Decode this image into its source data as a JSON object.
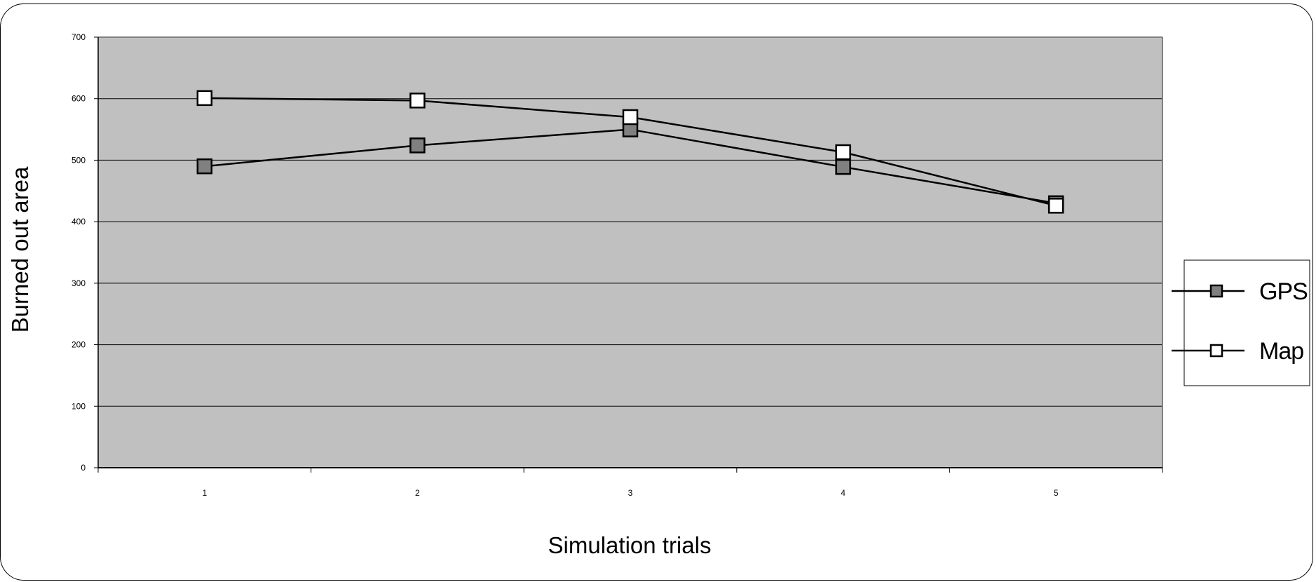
{
  "chart_data": {
    "type": "line",
    "title": "",
    "xlabel": "Simulation trials",
    "ylabel": "Burned out area",
    "categories": [
      "1",
      "2",
      "3",
      "4",
      "5"
    ],
    "ylim": [
      0,
      700
    ],
    "yticks": [
      "0",
      "100",
      "200",
      "300",
      "400",
      "500",
      "600",
      "700"
    ],
    "grid": true,
    "legend_position": "right",
    "plot_background": "#c0c0c0",
    "series": [
      {
        "name": "GPS",
        "values": [
          490,
          524,
          550,
          489,
          430
        ],
        "marker_color": "#808080",
        "line_color": "#000000"
      },
      {
        "name": "Map",
        "values": [
          601,
          597,
          570,
          513,
          426
        ],
        "marker_color": "#ffffff",
        "line_color": "#000000"
      }
    ]
  }
}
